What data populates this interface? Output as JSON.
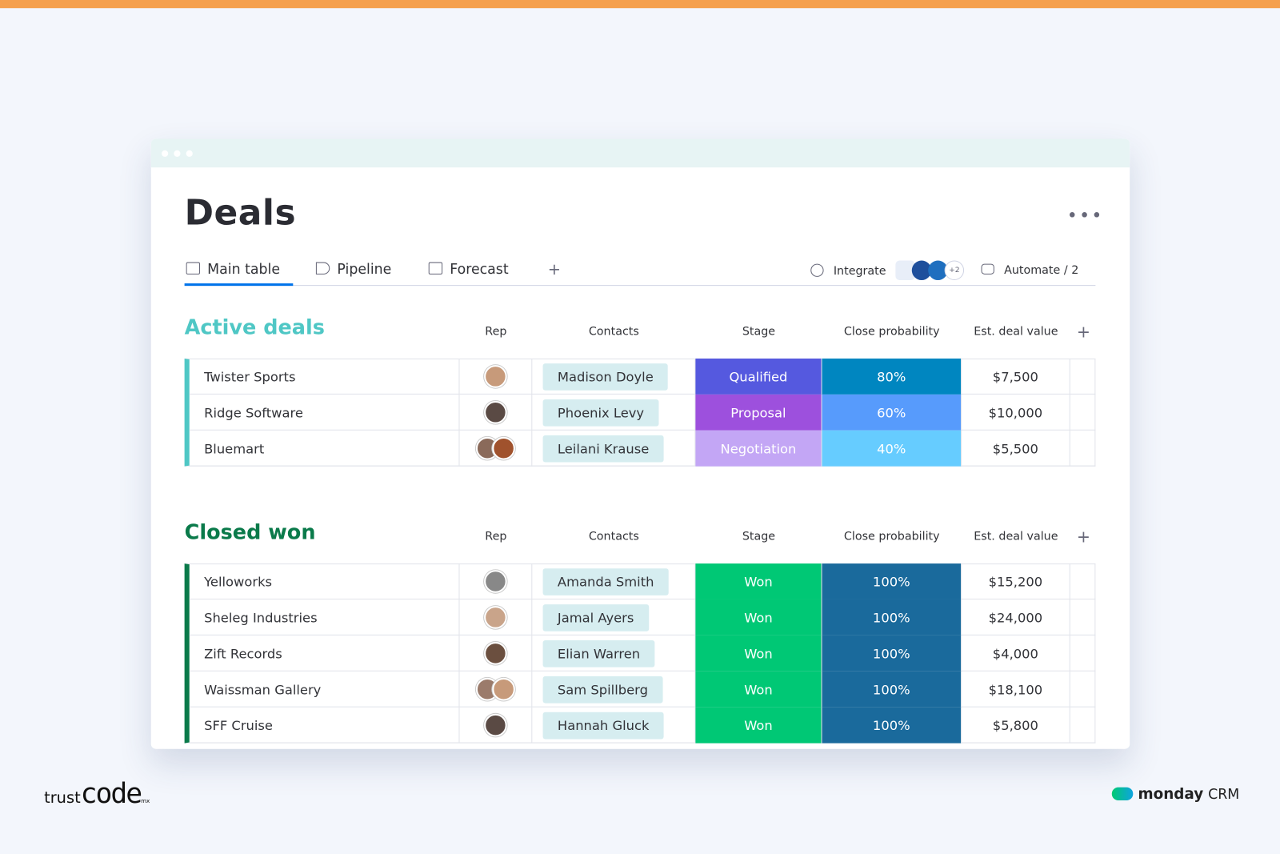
{
  "header": {
    "title": "Deals",
    "tabs": [
      "Main table",
      "Pipeline",
      "Forecast"
    ],
    "add_tab": "+",
    "integrate": "Integrate",
    "integrate_more": "+2",
    "automate": "Automate / 2"
  },
  "groups": [
    {
      "name": "Active deals",
      "columns": [
        "Rep",
        "Contacts",
        "Stage",
        "Close probability",
        "Est. deal value"
      ],
      "add_column": "+",
      "rows": [
        [
          "Twister Sports",
          "Madison Doyle",
          "Qualified",
          "80%",
          "$7,500"
        ],
        [
          "Ridge Software",
          "Phoenix Levy",
          "Proposal",
          "60%",
          "$10,000"
        ],
        [
          "Bluemart",
          "Leilani Krause",
          "Negotiation",
          "40%",
          "$5,500"
        ]
      ]
    },
    {
      "name": "Closed won",
      "columns": [
        "Rep",
        "Contacts",
        "Stage",
        "Close probability",
        "Est. deal value"
      ],
      "add_column": "+",
      "rows": [
        [
          "Yelloworks",
          "Amanda Smith",
          "Won",
          "100%",
          "$15,200"
        ],
        [
          "Sheleg Industries",
          "Jamal Ayers",
          "Won",
          "100%",
          "$24,000"
        ],
        [
          "Zift Records",
          "Elian Warren",
          "Won",
          "100%",
          "$4,000"
        ],
        [
          "Waissman Gallery",
          "Sam Spillberg",
          "Won",
          "100%",
          "$18,100"
        ],
        [
          "SFF Cruise",
          "Hannah Gluck",
          "Won",
          "100%",
          "$5,800"
        ]
      ]
    }
  ],
  "footer": {
    "left_brand": "trust",
    "left_brand_bold": "code",
    "left_brand_suffix": "mx",
    "right_brand": "monday",
    "right_brand_suffix": "CRM"
  }
}
